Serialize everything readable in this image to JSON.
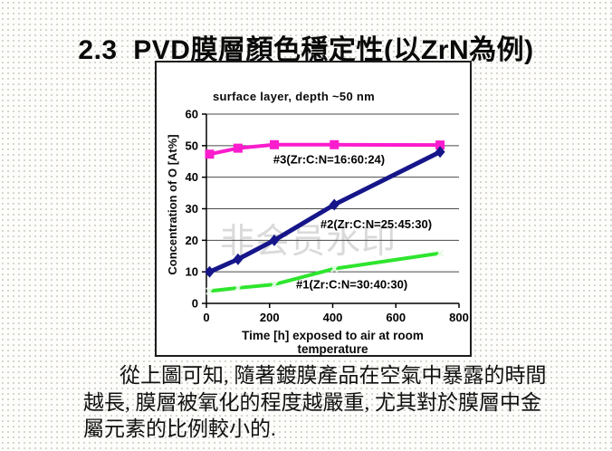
{
  "slide": {
    "title": "2.3  PVD膜層顏色穩定性(以ZrN為例)",
    "body_lines": [
      "從上圖可知, 隨著鍍膜產品在空氣中暴露的時間",
      "越長, 膜層被氧化的程度越嚴重, 尤其對於膜層中金",
      "屬元素的比例較小的."
    ]
  },
  "chart_data": {
    "type": "line",
    "title": "surface layer, depth ~50 nm",
    "xlabel": "Time [h] exposed to air at room temperature",
    "ylabel": "Concentration of O [At%]",
    "xlim": [
      0,
      800
    ],
    "ylim": [
      0,
      60
    ],
    "x_ticks": [
      0,
      200,
      400,
      600,
      800
    ],
    "y_ticks": [
      0,
      10,
      20,
      30,
      40,
      50,
      60
    ],
    "grid": "horizontal",
    "legend_position": "inline-labels",
    "watermark": "非会员水印",
    "colors": {
      "grid": "#4a4a4a",
      "axis": "#000000"
    },
    "series": [
      {
        "name": "#3(Zr:C:N=16:60:24)",
        "color": "#fb1ccd",
        "marker": "square",
        "width": 4,
        "points": [
          [
            10,
            47.3
          ],
          [
            100,
            49.2
          ],
          [
            215,
            50.3
          ],
          [
            405,
            50.3
          ],
          [
            740,
            50.2
          ]
        ],
        "label_pos": [
          212,
          44.3
        ]
      },
      {
        "name": "#2(Zr:C:N=25:45:30)",
        "color": "#16168a",
        "marker": "diamond",
        "width": 5,
        "points": [
          [
            10,
            10
          ],
          [
            100,
            14
          ],
          [
            215,
            20
          ],
          [
            405,
            31.3
          ],
          [
            740,
            48
          ]
        ],
        "label_pos": [
          361,
          23.8
        ]
      },
      {
        "name": "#1(Zr:C:N=30:40:30)",
        "color": "#2ee52e",
        "marker": "x",
        "width": 4,
        "points": [
          [
            10,
            3.9
          ],
          [
            100,
            4.9
          ],
          [
            215,
            6
          ],
          [
            405,
            11
          ],
          [
            740,
            15.9
          ]
        ],
        "label_pos": [
          284,
          4.8
        ]
      }
    ]
  }
}
